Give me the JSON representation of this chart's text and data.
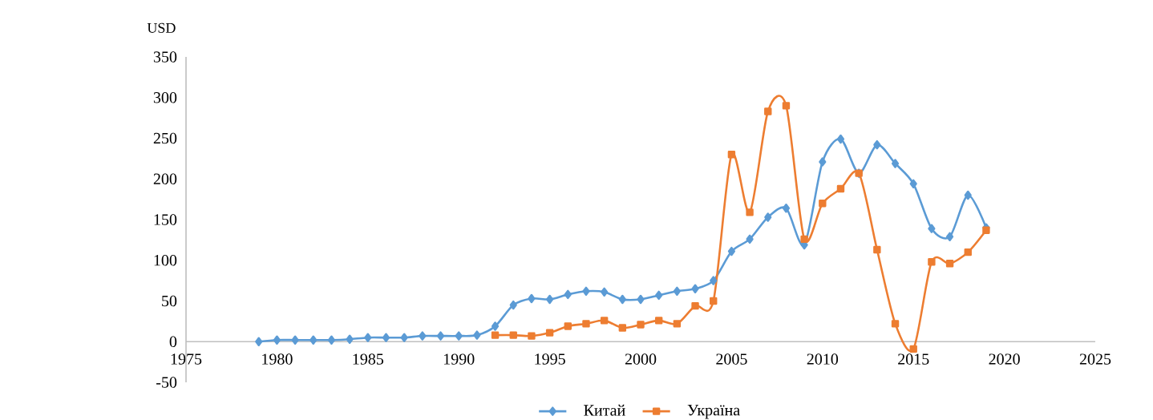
{
  "chart_data": {
    "type": "line",
    "ylabel": "USD",
    "x": [
      1979,
      1980,
      1981,
      1982,
      1983,
      1984,
      1985,
      1986,
      1987,
      1988,
      1989,
      1990,
      1991,
      1992,
      1993,
      1994,
      1995,
      1996,
      1997,
      1998,
      1999,
      2000,
      2001,
      2002,
      2003,
      2004,
      2005,
      2006,
      2007,
      2008,
      2009,
      2010,
      2011,
      2012,
      2013,
      2014,
      2015,
      2016,
      2017,
      2018,
      2019
    ],
    "xlim": [
      1975,
      2025
    ],
    "xticks": [
      1975,
      1980,
      1985,
      1990,
      1995,
      2000,
      2005,
      2010,
      2015,
      2020,
      2025
    ],
    "ylim": [
      -50,
      350
    ],
    "yticks": [
      -50,
      0,
      50,
      100,
      150,
      200,
      250,
      300,
      350
    ],
    "legend": "bottom",
    "series": [
      {
        "name": "Китай",
        "color": "#5b9bd5",
        "marker": "diamond",
        "values": [
          0,
          2,
          2,
          2,
          2,
          3,
          5,
          5,
          5,
          7,
          7,
          7,
          8,
          19,
          45,
          53,
          52,
          58,
          62,
          61,
          52,
          52,
          57,
          62,
          65,
          75,
          111,
          126,
          153,
          164,
          119,
          221,
          249,
          207,
          242,
          219,
          194,
          139,
          129,
          180,
          140
        ]
      },
      {
        "name": "Україна",
        "color": "#ed7d31",
        "marker": "square",
        "values": [
          null,
          null,
          null,
          null,
          null,
          null,
          null,
          null,
          null,
          null,
          null,
          null,
          null,
          8,
          8,
          7,
          11,
          19,
          22,
          26,
          17,
          21,
          26,
          22,
          44,
          50,
          230,
          159,
          283,
          290,
          126,
          170,
          188,
          207,
          113,
          22,
          -9,
          98,
          96,
          110,
          137
        ]
      }
    ]
  }
}
